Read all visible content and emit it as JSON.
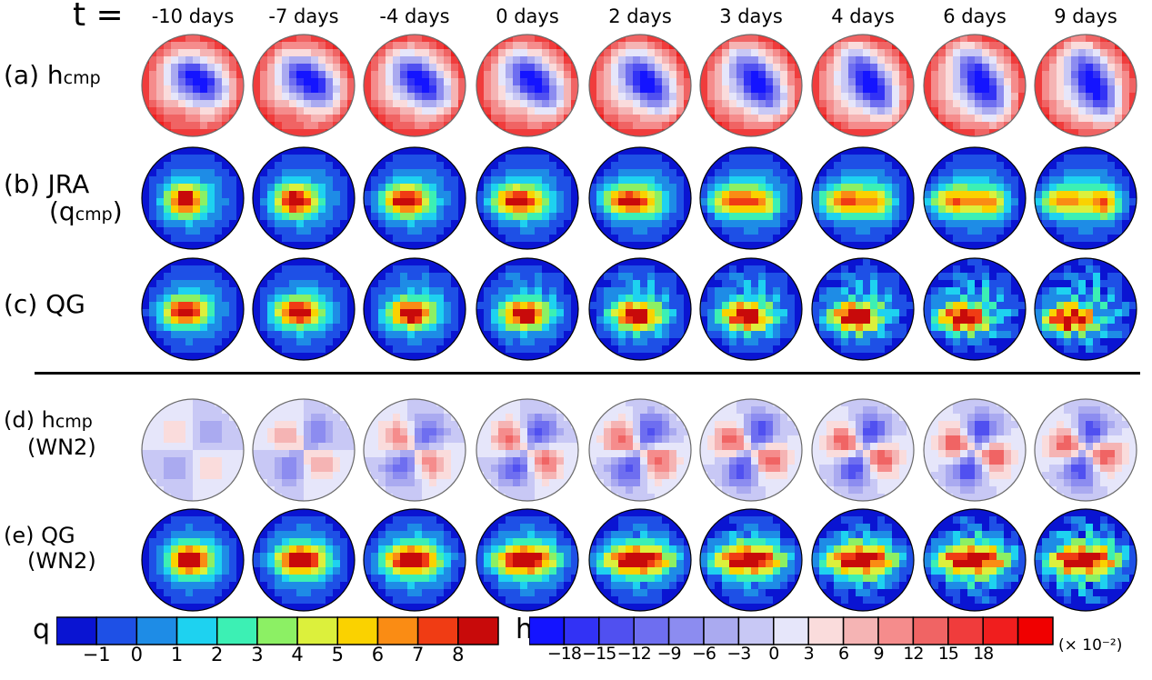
{
  "header": {
    "t_label": "t =",
    "columns": [
      "-10 days",
      "-7 days",
      "-4 days",
      "0 days",
      "2 days",
      "3 days",
      "4 days",
      "6 days",
      "9 days"
    ]
  },
  "rows": [
    {
      "label": "(a) h",
      "sub": "cmp",
      "line2": "",
      "line2_sub": "",
      "line2_end": "",
      "palette": "h",
      "field": "a"
    },
    {
      "label": "(b) JRA",
      "sub": "",
      "line2": "(q",
      "line2_sub": "cmp",
      "line2_end": ")",
      "palette": "q",
      "field": "b"
    },
    {
      "label": "(c) QG",
      "sub": "",
      "line2": "",
      "line2_sub": "",
      "line2_end": "",
      "palette": "q",
      "field": "c"
    },
    {
      "label": "(d) h",
      "sub": "cmp",
      "line2": "(WN2)",
      "line2_sub": "",
      "line2_end": "",
      "palette": "h",
      "field": "d"
    },
    {
      "label": "(e) QG",
      "sub": "",
      "line2": "(WN2)",
      "line2_sub": "",
      "line2_end": "",
      "palette": "q",
      "field": "e"
    }
  ],
  "colorbar_q": {
    "title": "q",
    "ticks": [
      "−1",
      "0",
      "1",
      "2",
      "3",
      "4",
      "5",
      "6",
      "7",
      "8"
    ],
    "colors": [
      "#0a14d2",
      "#1e50e6",
      "#1e8ce6",
      "#1ed2f0",
      "#3cf0b4",
      "#8cf064",
      "#dcf03c",
      "#fad200",
      "#fa8c14",
      "#f03c14",
      "#c80a0a"
    ]
  },
  "colorbar_h": {
    "title": "h",
    "ticks": [
      "−18",
      "−15",
      "−12",
      "−9",
      "−6",
      "−3",
      "0",
      "3",
      "6",
      "9",
      "12",
      "15",
      "18"
    ],
    "scale": "(× 10⁻²)",
    "colors": [
      "#1414ff",
      "#3232f5",
      "#5050f0",
      "#6e6ef0",
      "#8c8cf0",
      "#aaaaf0",
      "#c8c8f5",
      "#e6e6fa",
      "#fadcdc",
      "#f5b4b4",
      "#f58c8c",
      "#f06464",
      "#f03c3c",
      "#f01e1e",
      "#f00000"
    ]
  }
}
